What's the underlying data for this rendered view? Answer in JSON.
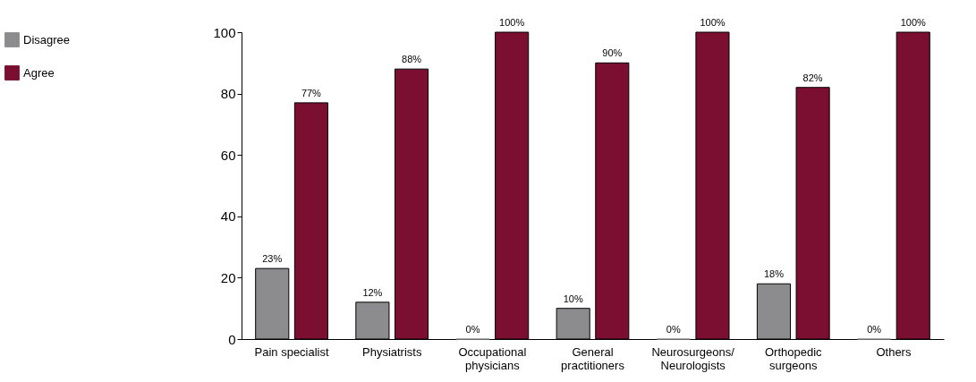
{
  "chart_data": {
    "type": "bar",
    "categories": [
      "Pain specialist",
      "Physiatrists",
      "Occupational\nphysicians",
      "General\npractitioners",
      "Neurosurgeons/\nNeurologists",
      "Orthopedic\nsurgeons",
      "Others"
    ],
    "series": [
      {
        "name": "Disagree",
        "color": "#8c8c8e",
        "values": [
          23,
          12,
          0,
          10,
          0,
          18,
          0
        ],
        "value_labels": [
          "23%",
          "12%",
          "0%",
          "10%",
          "0%",
          "18%",
          "0%"
        ]
      },
      {
        "name": "Agree",
        "color": "#7b0f31",
        "values": [
          77,
          88,
          100,
          90,
          100,
          82,
          100
        ],
        "value_labels": [
          "77%",
          "88%",
          "100%",
          "90%",
          "100%",
          "82%",
          "100%"
        ]
      }
    ],
    "ylim": [
      0,
      100
    ],
    "yticks": [
      0,
      20,
      40,
      60,
      80,
      100
    ],
    "grid": false,
    "legend": "top left"
  }
}
